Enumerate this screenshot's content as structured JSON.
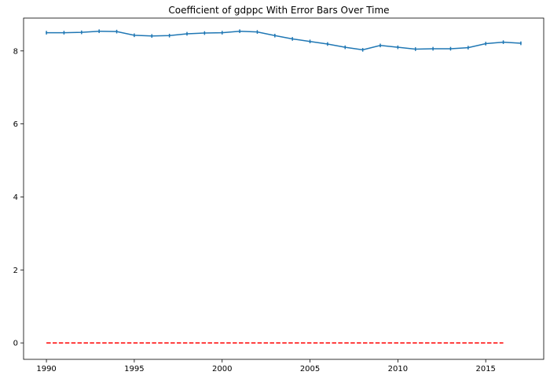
{
  "chart_data": {
    "type": "line",
    "title": "Coefficient of gdppc With Error Bars Over Time",
    "xlabel": "",
    "ylabel": "",
    "xlim": [
      1988.7,
      2018.3
    ],
    "ylim": [
      -0.45,
      8.9
    ],
    "xticks": [
      1990,
      1995,
      2000,
      2005,
      2010,
      2015
    ],
    "yticks": [
      0,
      2,
      4,
      6,
      8
    ],
    "grid": false,
    "legend": "none",
    "series": [
      {
        "color": "#1f77b4",
        "style": "solid",
        "error_bars": true,
        "x": [
          1990,
          1991,
          1992,
          1993,
          1994,
          1995,
          1996,
          1997,
          1998,
          1999,
          2000,
          2001,
          2002,
          2003,
          2004,
          2005,
          2006,
          2007,
          2008,
          2009,
          2010,
          2011,
          2012,
          2013,
          2014,
          2015,
          2016,
          2017
        ],
        "y": [
          8.5,
          8.5,
          8.51,
          8.54,
          8.53,
          8.43,
          8.41,
          8.42,
          8.47,
          8.49,
          8.5,
          8.54,
          8.52,
          8.42,
          8.33,
          8.26,
          8.19,
          8.1,
          8.03,
          8.15,
          8.1,
          8.05,
          8.06,
          8.06,
          8.09,
          8.2,
          8.24,
          8.21
        ],
        "err": [
          0.05,
          0.05,
          0.05,
          0.05,
          0.05,
          0.05,
          0.05,
          0.05,
          0.05,
          0.05,
          0.05,
          0.05,
          0.05,
          0.05,
          0.05,
          0.05,
          0.05,
          0.05,
          0.05,
          0.05,
          0.05,
          0.05,
          0.05,
          0.05,
          0.05,
          0.05,
          0.05,
          0.05
        ]
      },
      {
        "color": "#ff0000",
        "style": "dashed",
        "error_bars": false,
        "x": [
          1990,
          2016
        ],
        "y": [
          0,
          0
        ]
      }
    ]
  }
}
